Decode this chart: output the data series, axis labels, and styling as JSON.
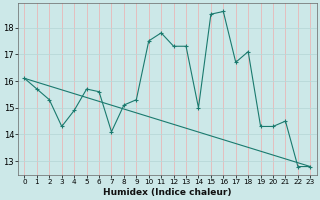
{
  "xlabel": "Humidex (Indice chaleur)",
  "background_color": "#cce8e8",
  "grid_color": "#b0d4d4",
  "line_color": "#1a7a6e",
  "xlim": [
    -0.5,
    23.5
  ],
  "ylim": [
    12.5,
    18.9
  ],
  "yticks": [
    13,
    14,
    15,
    16,
    17,
    18
  ],
  "xticks": [
    0,
    1,
    2,
    3,
    4,
    5,
    6,
    7,
    8,
    9,
    10,
    11,
    12,
    13,
    14,
    15,
    16,
    17,
    18,
    19,
    20,
    21,
    22,
    23
  ],
  "series1_x": [
    0,
    1,
    2,
    3,
    4,
    5,
    6,
    7,
    8,
    9,
    10,
    11,
    12,
    13,
    14,
    15,
    16,
    17,
    18,
    19,
    20,
    21,
    22,
    23
  ],
  "series1_y": [
    16.1,
    15.7,
    15.3,
    14.3,
    14.9,
    15.7,
    15.6,
    14.1,
    15.1,
    15.3,
    17.5,
    17.8,
    17.3,
    17.3,
    15.0,
    18.5,
    18.6,
    16.7,
    17.1,
    14.3,
    14.3,
    14.5,
    12.8,
    12.8
  ],
  "series2_x": [
    0,
    23
  ],
  "series2_y": [
    16.1,
    12.8
  ]
}
